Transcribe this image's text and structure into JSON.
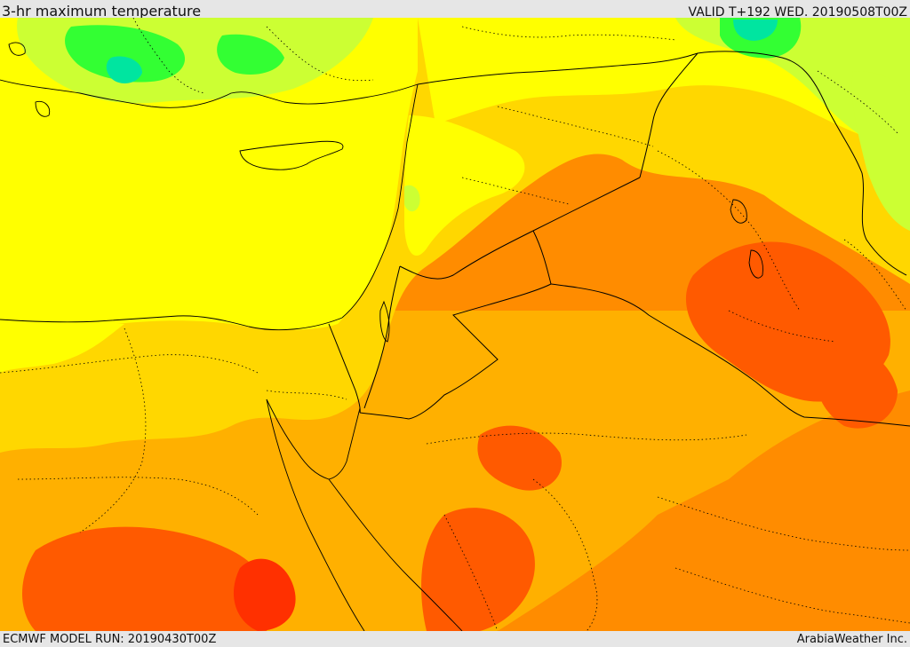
{
  "header": {
    "title": "3-hr maximum temperature",
    "valid": "VALID T+192 WED. 20190508T00Z"
  },
  "footer": {
    "model_run": "ECMWF MODEL RUN: 20190430T00Z",
    "credit": "ArabiaWeather Inc."
  },
  "colors": {
    "sea_and_mild": "#ffff00",
    "warm": "#ffd700",
    "warmer": "#ffb000",
    "hot": "#ff8c00",
    "very_hot": "#ff5a00",
    "extreme": "#ff3000",
    "cool_light": "#ccff33",
    "cool": "#33ff33",
    "cold": "#00e5a0",
    "border": "#000000"
  }
}
